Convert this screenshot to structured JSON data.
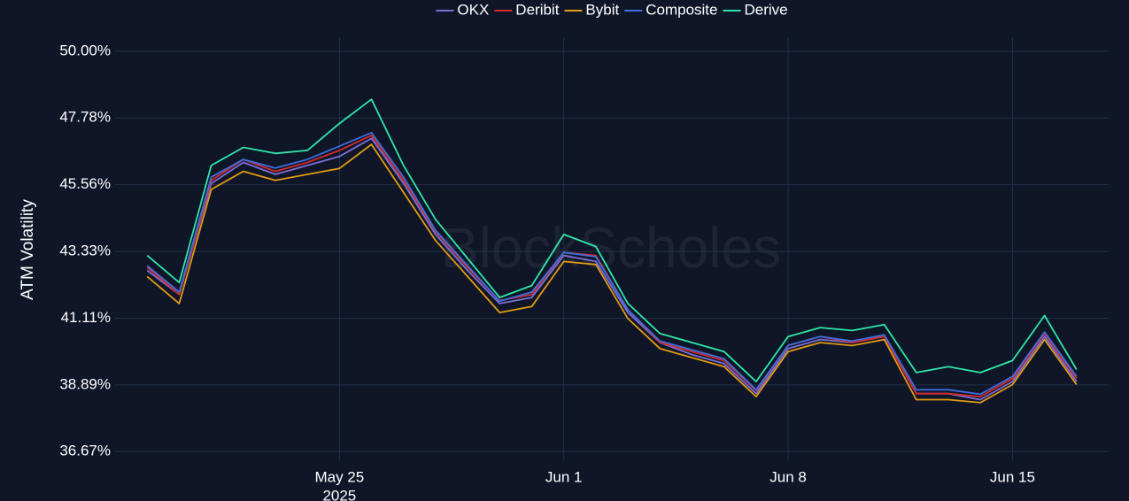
{
  "chart_data": {
    "type": "line",
    "y_label": "ATM Volatility",
    "watermark": "BlockScholes",
    "x": [
      "2025-05-19",
      "2025-05-20",
      "2025-05-21",
      "2025-05-22",
      "2025-05-23",
      "2025-05-24",
      "2025-05-25",
      "2025-05-26",
      "2025-05-27",
      "2025-05-28",
      "2025-05-29",
      "2025-05-30",
      "2025-05-31",
      "2025-06-01",
      "2025-06-02",
      "2025-06-03",
      "2025-06-04",
      "2025-06-05",
      "2025-06-06",
      "2025-06-07",
      "2025-06-08",
      "2025-06-09",
      "2025-06-10",
      "2025-06-11",
      "2025-06-12",
      "2025-06-13",
      "2025-06-14",
      "2025-06-15",
      "2025-06-16",
      "2025-06-17"
    ],
    "xlim": [
      "2025-05-18",
      "2025-06-18"
    ],
    "xticks": [
      {
        "value": "2025-05-25",
        "label": "May 25"
      },
      {
        "value": "2025-06-01",
        "label": "Jun 1"
      },
      {
        "value": "2025-06-08",
        "label": "Jun 8"
      },
      {
        "value": "2025-06-15",
        "label": "Jun 15"
      }
    ],
    "x_year": "2025",
    "ylim": [
      36.38,
      50.47
    ],
    "yticks": [
      {
        "value": 36.67,
        "label": "36.67%"
      },
      {
        "value": 38.89,
        "label": "38.89%"
      },
      {
        "value": 41.11,
        "label": "41.11%"
      },
      {
        "value": 43.33,
        "label": "43.33%"
      },
      {
        "value": 45.56,
        "label": "45.56%"
      },
      {
        "value": 47.78,
        "label": "47.78%"
      },
      {
        "value": 50.0,
        "label": "50.00%"
      }
    ],
    "grid": true,
    "legend": "top",
    "series": [
      {
        "name": "OKX",
        "color": "#7b6fd6",
        "values": [
          42.7,
          41.9,
          45.6,
          46.3,
          45.9,
          46.2,
          46.5,
          47.1,
          45.6,
          43.9,
          42.7,
          41.6,
          41.8,
          43.2,
          43.0,
          41.3,
          40.3,
          39.9,
          39.6,
          38.6,
          40.1,
          40.4,
          40.3,
          40.5,
          38.6,
          38.6,
          38.4,
          39.0,
          40.5,
          39.0
        ]
      },
      {
        "name": "Deribit",
        "color": "#d62a2a",
        "values": [
          42.8,
          41.9,
          45.7,
          46.4,
          46.0,
          46.3,
          46.7,
          47.2,
          45.7,
          44.0,
          42.8,
          41.7,
          41.9,
          43.3,
          43.2,
          41.4,
          40.3,
          40.0,
          39.7,
          38.7,
          40.2,
          40.5,
          40.3,
          40.5,
          38.6,
          38.6,
          38.5,
          39.1,
          40.6,
          39.1
        ]
      },
      {
        "name": "Bybit",
        "color": "#e39b12",
        "values": [
          42.5,
          41.6,
          45.4,
          46.0,
          45.7,
          45.9,
          46.1,
          46.9,
          45.3,
          43.7,
          42.5,
          41.3,
          41.5,
          43.0,
          42.9,
          41.1,
          40.1,
          39.8,
          39.5,
          38.5,
          40.0,
          40.3,
          40.2,
          40.4,
          38.4,
          38.4,
          38.3,
          38.9,
          40.4,
          38.9
        ]
      },
      {
        "name": "Composite",
        "color": "#3d6ee0",
        "values": [
          42.86,
          41.98,
          45.81,
          46.4,
          46.11,
          46.4,
          46.84,
          47.29,
          45.81,
          44.04,
          42.86,
          41.68,
          41.98,
          43.3,
          43.16,
          41.39,
          40.35,
          40.06,
          39.76,
          38.73,
          40.21,
          40.5,
          40.35,
          40.56,
          38.73,
          38.73,
          38.58,
          39.17,
          40.65,
          39.17
        ]
      },
      {
        "name": "Derive",
        "color": "#2ee6a8",
        "values": [
          43.2,
          42.3,
          46.2,
          46.8,
          46.6,
          46.7,
          47.6,
          48.4,
          46.2,
          44.4,
          43.1,
          41.8,
          42.2,
          43.9,
          43.5,
          41.6,
          40.6,
          40.3,
          40.0,
          39.0,
          40.5,
          40.8,
          40.7,
          40.9,
          39.3,
          39.5,
          39.3,
          39.7,
          41.2,
          39.4
        ]
      }
    ]
  }
}
